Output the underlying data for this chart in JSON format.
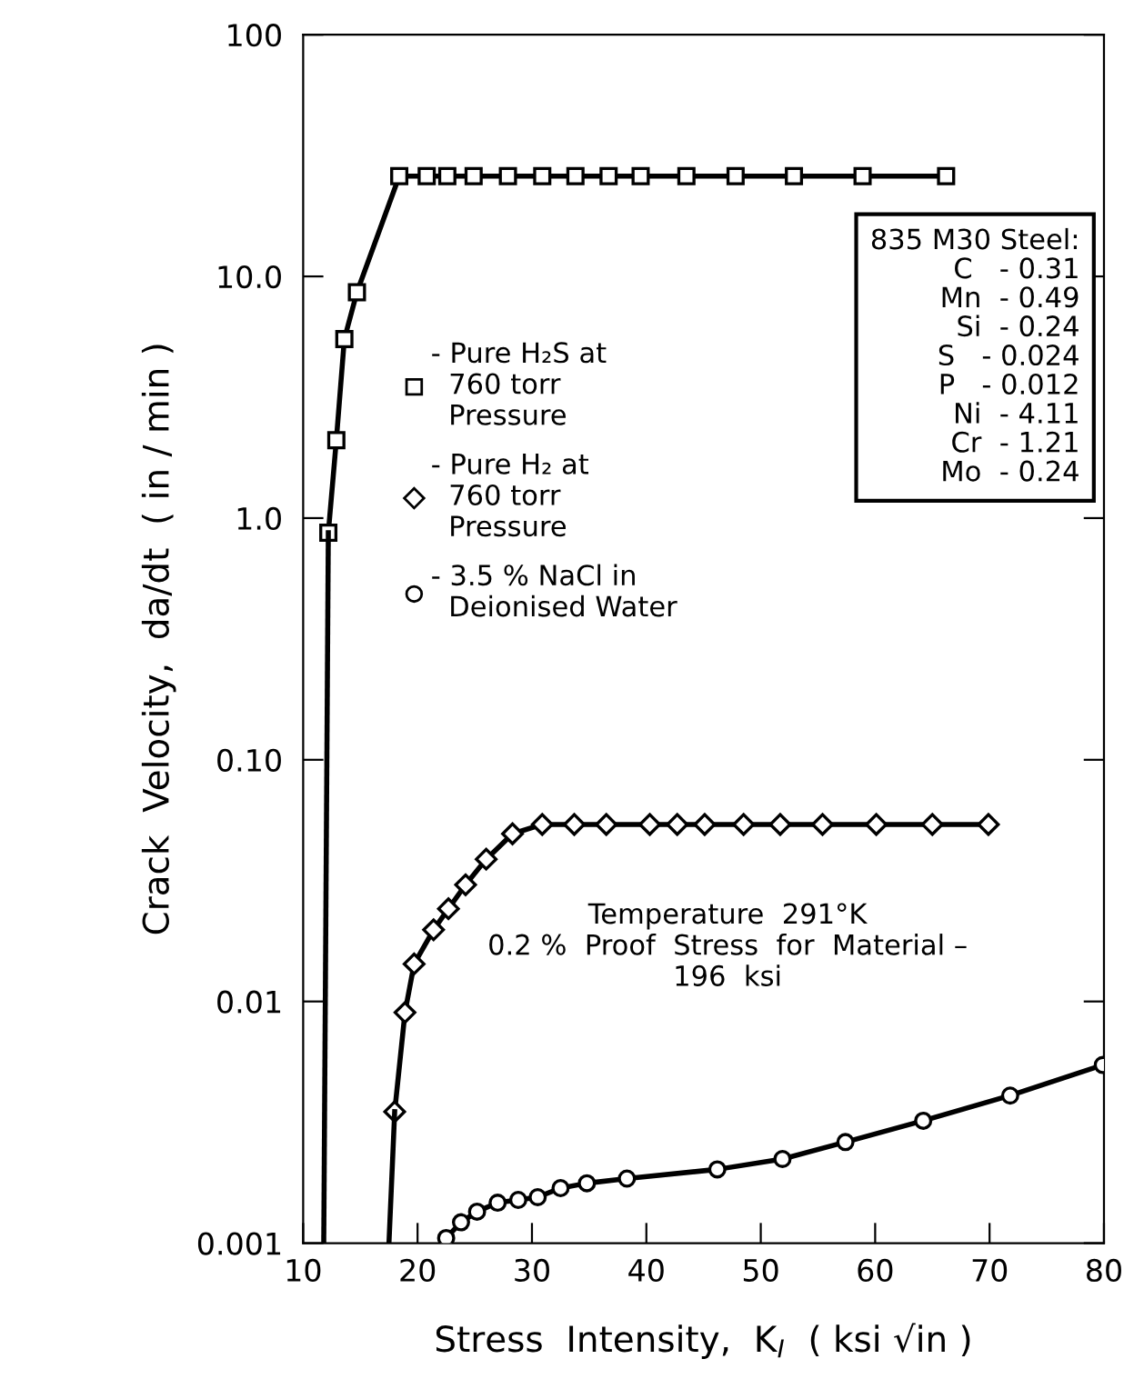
{
  "chart_data": {
    "type": "line",
    "xlabel": "Stress  Intensity,  K$_{I}$  ( ksi √in )",
    "ylabel": "Crack  Velocity,  da/dt  ( in / min )",
    "log": "y",
    "xlim": [
      10,
      80
    ],
    "xticks": [
      10,
      20,
      30,
      40,
      50,
      60,
      70,
      80
    ],
    "ylim": [
      0.001,
      100
    ],
    "yticks": [
      0.001,
      0.01,
      {
        "value": 0.1,
        "label": "0.10"
      },
      {
        "value": 1,
        "label": "1.0"
      },
      {
        "value": 10,
        "label": "10.0"
      },
      100
    ],
    "grid": false,
    "legend": "left",
    "line_style": "solid",
    "series": [
      {
        "name": "- Pure H₂S at\n  760 torr\n  Pressure",
        "color": "#000000",
        "marker": "square",
        "x": [
          12.2,
          12.9,
          13.6,
          14.7,
          18.4,
          20.8,
          22.6,
          24.9,
          27.9,
          30.9,
          33.8,
          36.7,
          39.5,
          43.5,
          47.8,
          52.9,
          58.9,
          66.2
        ],
        "values": [
          0.87,
          2.1,
          5.5,
          8.6,
          26,
          26,
          26,
          26,
          26,
          26,
          26,
          26,
          26,
          26,
          26,
          26,
          26,
          26
        ]
      },
      {
        "name": "- Pure H₂ at\n  760 torr\n  Pressure",
        "color": "#000000",
        "marker": "diamond",
        "x": [
          18.0,
          18.9,
          19.7,
          21.4,
          22.7,
          24.2,
          26.0,
          28.3,
          30.9,
          33.7,
          36.5,
          40.3,
          42.7,
          45.1,
          48.5,
          51.7,
          55.4,
          60.1,
          65.0,
          69.9
        ],
        "values": [
          0.0035,
          0.009,
          0.0143,
          0.0198,
          0.0242,
          0.0304,
          0.0388,
          0.0494,
          0.054,
          0.054,
          0.054,
          0.054,
          0.054,
          0.054,
          0.054,
          0.054,
          0.054,
          0.054,
          0.054,
          0.054
        ]
      },
      {
        "name": "- 3.5 % NaCl in\n  Deionised Water",
        "color": "#000000",
        "marker": "circle",
        "x": [
          22.5,
          23.8,
          25.2,
          27.0,
          28.8,
          30.5,
          32.5,
          34.8,
          38.3,
          46.2,
          51.9,
          57.4,
          64.2,
          71.8,
          79.9
        ],
        "values": [
          0.00105,
          0.00122,
          0.00135,
          0.00147,
          0.00151,
          0.00155,
          0.00169,
          0.00177,
          0.00185,
          0.00202,
          0.00223,
          0.00262,
          0.00321,
          0.00408,
          0.00546
        ]
      },
      {
        "color": "#000000",
        "marker": "none",
        "x": [
          11.8,
          12.2
        ],
        "values": [
          0.001,
          0.87
        ]
      },
      {
        "color": "#000000",
        "marker": "none",
        "x": [
          17.5,
          18.0
        ],
        "values": [
          0.001,
          0.0035
        ]
      }
    ],
    "annotations": [
      "835 M30 Steel:\n    C   - 0.31\n    Mn  - 0.49\n    Si  - 0.24\n    S   - 0.024\n    P   - 0.012\n    Ni  - 4.11\n    Cr  - 1.21\n    Mo  - 0.24",
      "Temperature  291°K\n0.2 %  Proof  Stress  for  Material –\n196  ksi"
    ]
  }
}
